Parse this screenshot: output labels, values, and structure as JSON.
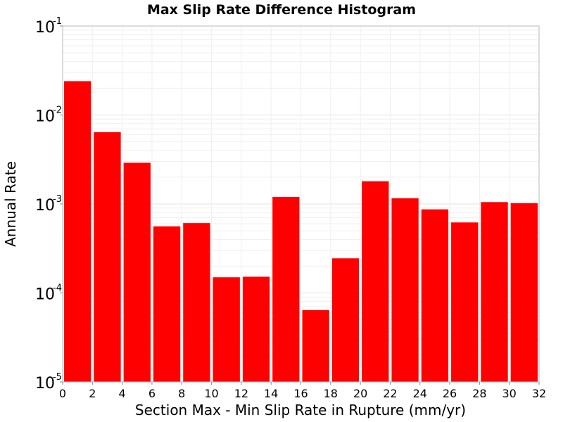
{
  "chart_data": {
    "type": "bar",
    "title": "Max Slip Rate Difference Histogram",
    "xlabel": "Section Max - Min Slip Rate in Rupture (mm/yr)",
    "ylabel": "Annual Rate",
    "x_ticks": [
      "0",
      "2",
      "4",
      "6",
      "8",
      "10",
      "12",
      "14",
      "16",
      "18",
      "20",
      "22",
      "24",
      "26",
      "28",
      "30",
      "32"
    ],
    "y_ticks": [
      {
        "base": "10",
        "exp": "-5"
      },
      {
        "base": "10",
        "exp": "-4"
      },
      {
        "base": "10",
        "exp": "-3"
      },
      {
        "base": "10",
        "exp": "-2"
      },
      {
        "base": "10",
        "exp": "-1"
      }
    ],
    "xlim": [
      0,
      32
    ],
    "ylim": [
      1e-05,
      0.1
    ],
    "yscale": "log",
    "bin_width": 2,
    "bins": [
      {
        "x0": 0,
        "x1": 2,
        "value": 0.024
      },
      {
        "x0": 2,
        "x1": 4,
        "value": 0.0064
      },
      {
        "x0": 4,
        "x1": 6,
        "value": 0.0029
      },
      {
        "x0": 6,
        "x1": 8,
        "value": 0.00056
      },
      {
        "x0": 8,
        "x1": 10,
        "value": 0.00061
      },
      {
        "x0": 10,
        "x1": 12,
        "value": 0.00015
      },
      {
        "x0": 12,
        "x1": 14,
        "value": 0.000152
      },
      {
        "x0": 14,
        "x1": 16,
        "value": 0.0012
      },
      {
        "x0": 16,
        "x1": 18,
        "value": 6.4e-05
      },
      {
        "x0": 18,
        "x1": 20,
        "value": 0.000245
      },
      {
        "x0": 20,
        "x1": 22,
        "value": 0.0018
      },
      {
        "x0": 22,
        "x1": 24,
        "value": 0.00116
      },
      {
        "x0": 24,
        "x1": 26,
        "value": 0.00087
      },
      {
        "x0": 26,
        "x1": 28,
        "value": 0.00062
      },
      {
        "x0": 28,
        "x1": 30,
        "value": 0.00105
      },
      {
        "x0": 30,
        "x1": 32,
        "value": 0.00102
      }
    ],
    "bar_color": "#ff0000",
    "grid": true,
    "legend": "none"
  }
}
